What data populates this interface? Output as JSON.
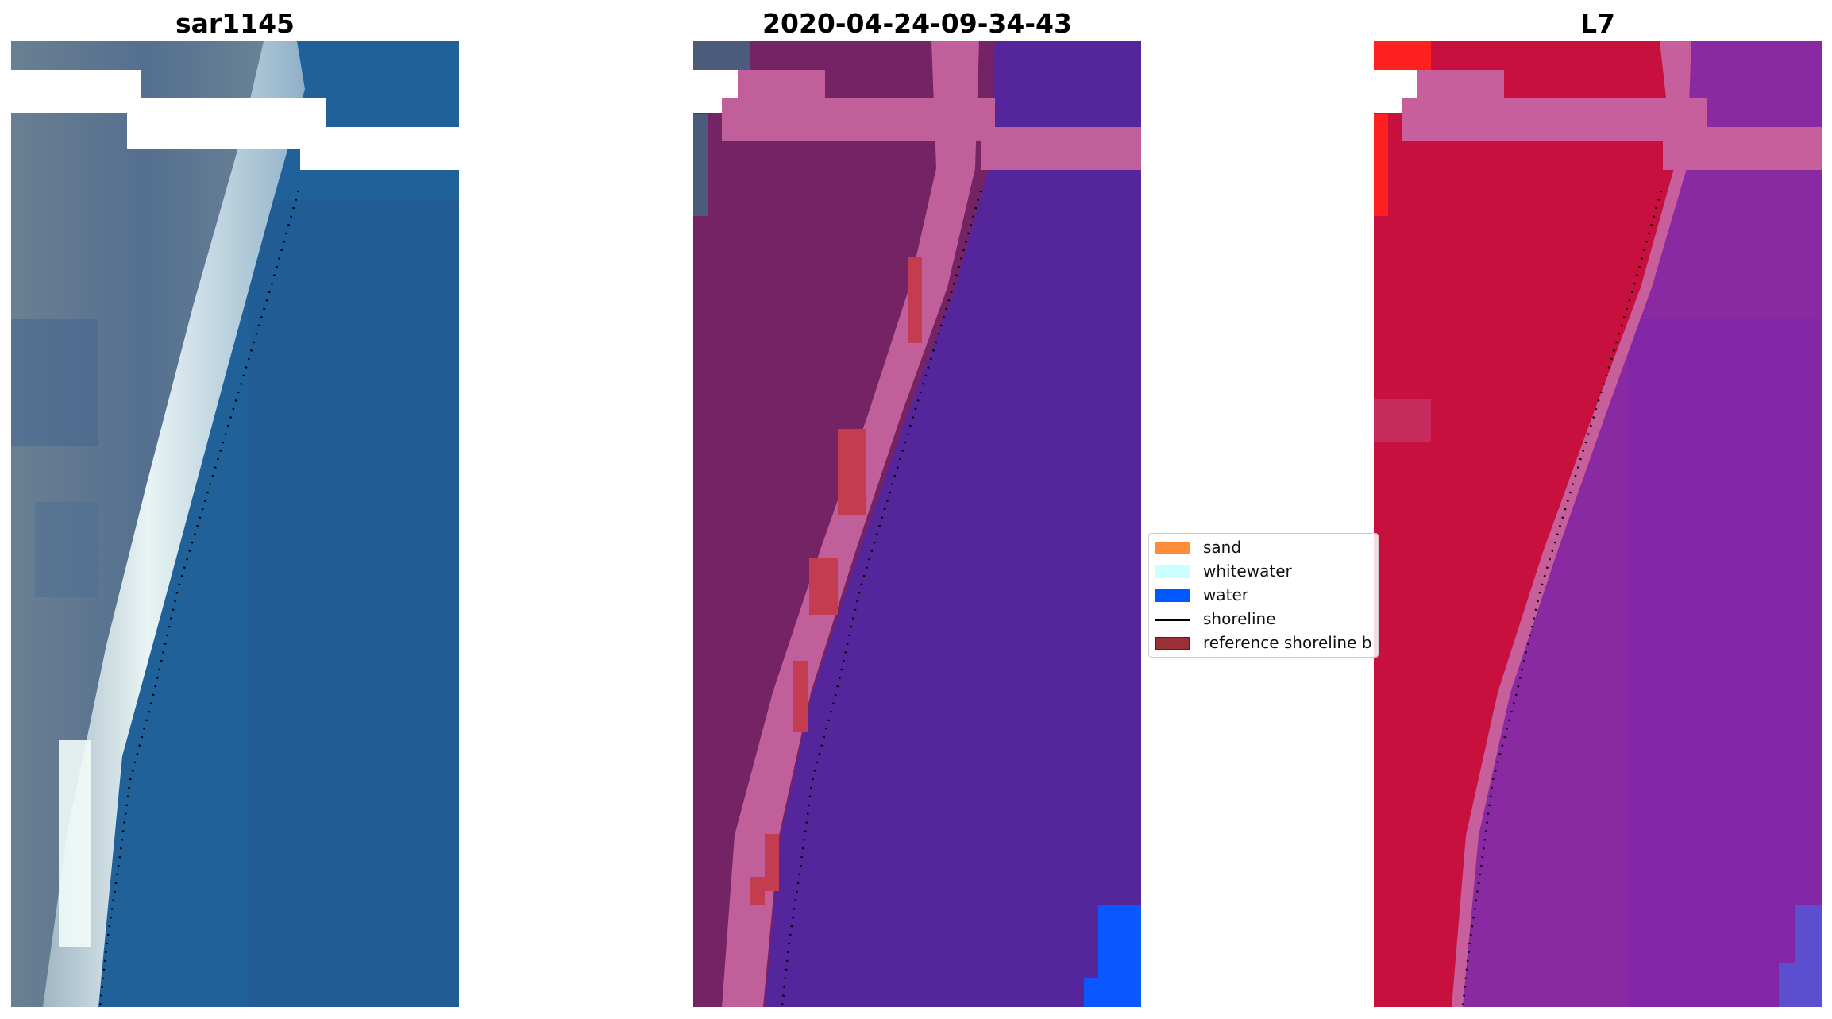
{
  "panels": {
    "left": {
      "title": "sar1145"
    },
    "middle": {
      "title": "2020-04-24-09-34-43"
    },
    "right": {
      "title": "L7"
    }
  },
  "legend": {
    "items": [
      {
        "label": "sand",
        "color": "#ff8c3a"
      },
      {
        "label": "whitewater",
        "color": "#ccffff"
      },
      {
        "label": "water",
        "color": "#0059ff"
      },
      {
        "label": "shoreline",
        "color": "#000000"
      },
      {
        "label": "reference shoreline b",
        "color": "#9b3036"
      }
    ]
  },
  "colors": {
    "rgb_water": "#22629a",
    "rgb_land": "#5d7891",
    "classified_water": "#55269b",
    "classified_land": "#742464",
    "classified_sand_band": "#c15f9a",
    "classified_reference_buffer": "#c43c50",
    "classified_water_blue": "#0a58ff",
    "false_color_land": "#c8103e",
    "false_color_water": "#8a2aa2",
    "false_color_band": "#c65f9b",
    "false_color_bright_red": "#ff2020",
    "nodata": "#ffffff"
  }
}
